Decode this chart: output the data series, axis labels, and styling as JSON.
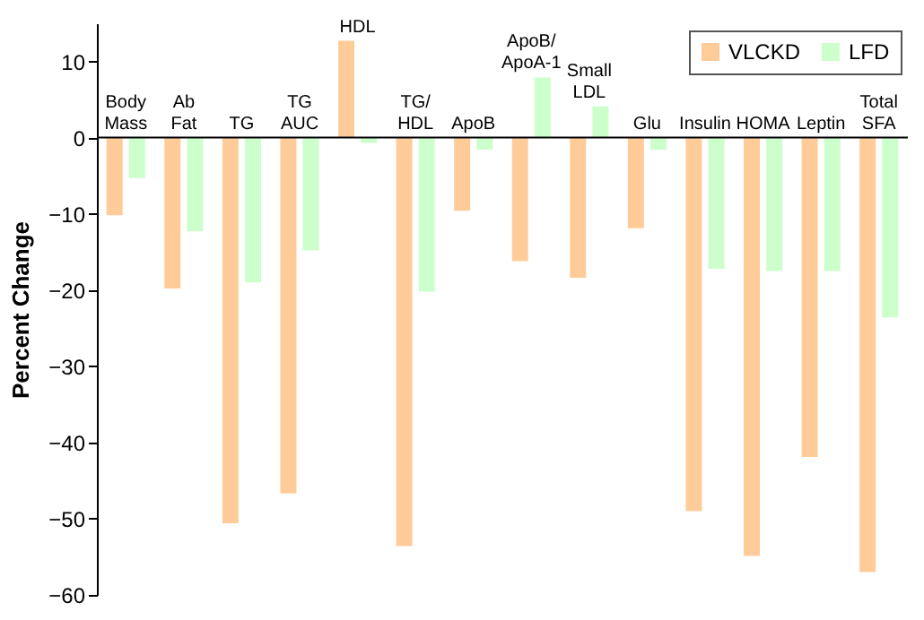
{
  "chart_data": {
    "type": "bar",
    "ylabel": "Percent Change",
    "categories": [
      "Body\nMass",
      "Ab\nFat",
      "TG",
      "TG\nAUC",
      "HDL",
      "TG/\nHDL",
      "ApoB",
      "ApoB/\nApoA-1",
      "Small\nLDL",
      "Glu",
      "Insulin",
      "HOMA",
      "Leptin",
      "Total\nSFA"
    ],
    "series": [
      {
        "name": "VLCKD",
        "color": "#ffcc99",
        "values": [
          -10.2,
          -19.8,
          -50.6,
          -46.7,
          12.7,
          -53.6,
          -9.6,
          -16.2,
          -18.4,
          -11.9,
          -49.0,
          -54.9,
          -41.9,
          -57.0
        ]
      },
      {
        "name": "LFD",
        "color": "#ccffcc",
        "values": [
          -5.3,
          -12.3,
          -19.0,
          -14.8,
          -0.7,
          -20.2,
          -1.6,
          7.9,
          4.1,
          -1.6,
          -17.2,
          -17.5,
          -17.5,
          -23.6
        ]
      }
    ],
    "ylim": [
      -60,
      15
    ],
    "yticks": [
      -60,
      -50,
      -40,
      -30,
      -20,
      -10,
      0,
      10
    ],
    "legend": "top right"
  }
}
